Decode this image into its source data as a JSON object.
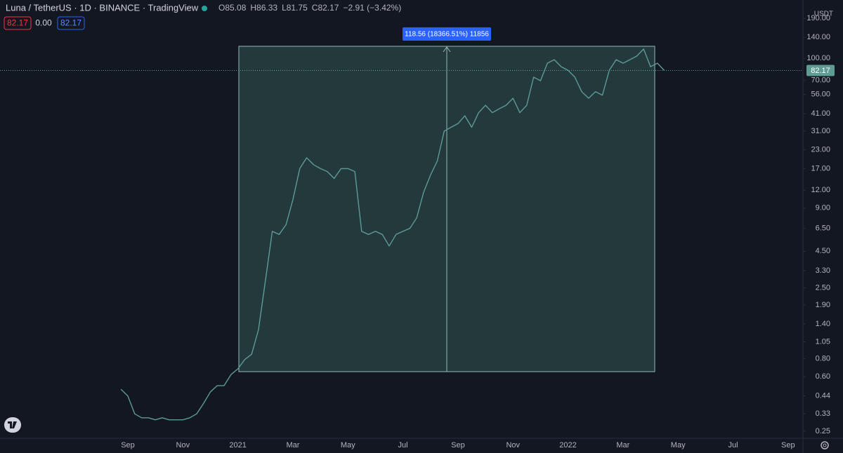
{
  "header": {
    "symbol": "Luna / TetherUS · 1D · BINANCE · TradingView",
    "ohlc": [
      "O85.08",
      "H86.33",
      "L81.75",
      "C82.17",
      "−2.91 (−3.42%)"
    ],
    "chips": [
      "82.17",
      "0.00",
      "82.17"
    ]
  },
  "chart_data": {
    "type": "line",
    "log_scale": true,
    "grid": false,
    "currency": "USDT",
    "annotation": "118.56 (18366.51%) 11856",
    "last_price": 82.17,
    "categories": [
      null,
      "Sep",
      null,
      null,
      null,
      null,
      null,
      null,
      null,
      "Nov",
      null,
      null,
      null,
      null,
      null,
      null,
      null,
      "2021",
      null,
      null,
      null,
      null,
      null,
      null,
      null,
      "Mar",
      null,
      null,
      null,
      null,
      null,
      null,
      null,
      "May",
      null,
      null,
      null,
      null,
      null,
      null,
      null,
      "Jul",
      null,
      null,
      null,
      null,
      null,
      null,
      null,
      "Sep",
      null,
      null,
      null,
      null,
      null,
      null,
      null,
      "Nov",
      null,
      null,
      null,
      null,
      null,
      null,
      null,
      "2022",
      null,
      null,
      null,
      null,
      null,
      null,
      null,
      "Mar",
      null,
      null,
      null,
      null,
      null,
      null,
      null,
      "May",
      null,
      null,
      null,
      null,
      null,
      null,
      null,
      "Jul",
      null,
      null,
      null,
      null,
      null,
      null,
      null,
      "Sep"
    ],
    "series": [
      {
        "name": "Luna / TetherUS",
        "color": "#5d9b93",
        "values": [
          0.49,
          0.44,
          0.33,
          0.31,
          0.31,
          0.3,
          0.31,
          0.3,
          0.3,
          0.3,
          0.31,
          0.33,
          0.39,
          0.47,
          0.52,
          0.52,
          0.62,
          0.68,
          0.79,
          0.86,
          1.28,
          2.8,
          6.2,
          5.9,
          6.9,
          10.3,
          17,
          20.2,
          18.1,
          17,
          16.2,
          14.5,
          17,
          17,
          16.2,
          6.2,
          5.9,
          6.2,
          5.9,
          4.9,
          5.9,
          6.2,
          6.5,
          7.7,
          11.6,
          15.3,
          19.2,
          31,
          33,
          35,
          39.7,
          33,
          41.7,
          47,
          41.7,
          44.4,
          47,
          52.6,
          41.7,
          47,
          73.8,
          69.7,
          92.4,
          97.8,
          87.3,
          82.4,
          73.8,
          58.4,
          52.6,
          58.4,
          55.2,
          82.4,
          97.8,
          92.4,
          97.8,
          103.5,
          116,
          87.3,
          92.4,
          82.17,
          null,
          null,
          null,
          null,
          null,
          null,
          null,
          null,
          null,
          null,
          null,
          null,
          null,
          null,
          null,
          null,
          null,
          null
        ]
      }
    ],
    "ylim": [
      0.223,
      255
    ],
    "yticks": [
      {
        "value": 190,
        "label": "190.00"
      },
      {
        "value": 140,
        "label": "140.00"
      },
      {
        "value": 100,
        "label": "100.00"
      },
      {
        "value": 70,
        "label": "70.00"
      },
      {
        "value": 56,
        "label": "56.00"
      },
      {
        "value": 41,
        "label": "41.00"
      },
      {
        "value": 31,
        "label": "31.00"
      },
      {
        "value": 23,
        "label": "23.00"
      },
      {
        "value": 17,
        "label": "17.00"
      },
      {
        "value": 12,
        "label": "12.00"
      },
      {
        "value": 9,
        "label": "9.00"
      },
      {
        "value": 6.5,
        "label": "6.50"
      },
      {
        "value": 4.5,
        "label": "4.50"
      },
      {
        "value": 3.3,
        "label": "3.30"
      },
      {
        "value": 2.5,
        "label": "2.50"
      },
      {
        "value": 1.9,
        "label": "1.90"
      },
      {
        "value": 1.4,
        "label": "1.40"
      },
      {
        "value": 1.05,
        "label": "1.05"
      },
      {
        "value": 0.8,
        "label": "0.80"
      },
      {
        "value": 0.6,
        "label": "0.60"
      },
      {
        "value": 0.44,
        "label": "0.44"
      },
      {
        "value": 0.33,
        "label": "0.33"
      },
      {
        "value": 0.25,
        "label": "0.25"
      }
    ]
  }
}
